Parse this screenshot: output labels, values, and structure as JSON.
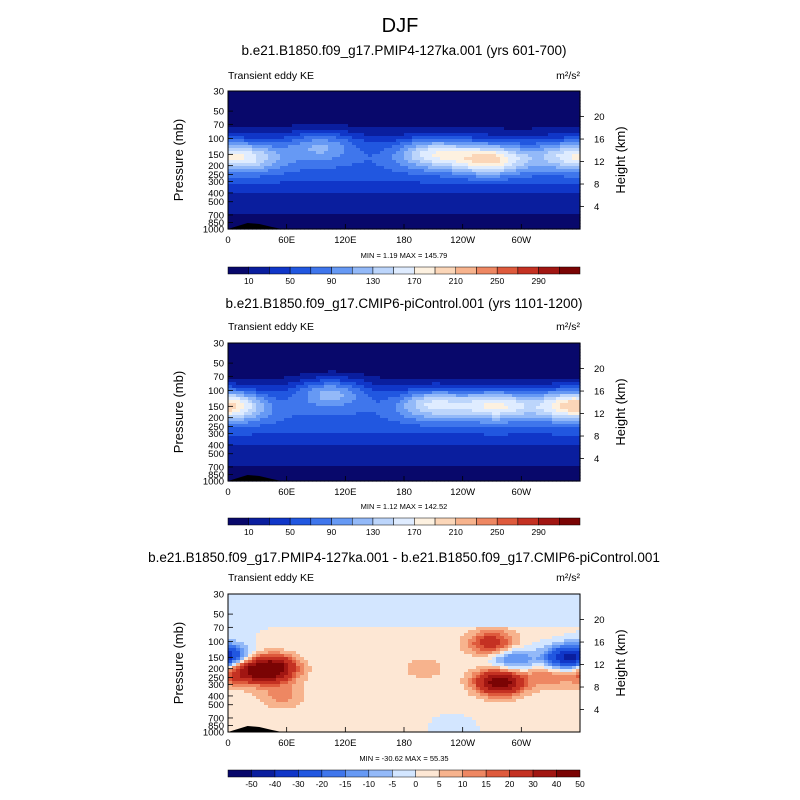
{
  "figure_title": "DJF",
  "colors": {
    "seq": [
      "#08086b",
      "#0a1e9e",
      "#1036c8",
      "#2157e0",
      "#3f76ec",
      "#6699f4",
      "#93b9f8",
      "#bcd5fb",
      "#dfecff",
      "#fdf1e0",
      "#fbd6b8",
      "#f7b38d",
      "#ee8762",
      "#de5a3c",
      "#c43122",
      "#a11612",
      "#7a0404"
    ],
    "div": [
      "#08086b",
      "#0a1e9e",
      "#1036c8",
      "#2157e0",
      "#3f76ec",
      "#6699f4",
      "#93b9f8",
      "#d3e6ff",
      "#fde7d4",
      "#f7b38d",
      "#ee8762",
      "#de5a3c",
      "#c43122",
      "#a11612",
      "#7a0404"
    ],
    "topo": "#000000"
  },
  "chart_data": [
    {
      "type": "heatmap",
      "title": "b.e21.B1850.f09_g17.PMIP4-127ka.001 (yrs 601-700)",
      "left_label": "Transient eddy KE",
      "right_label_units": "m²/s²",
      "ylabel": "Pressure (mb)",
      "ylabel_right": "Height (km)",
      "x_ticks": [
        "0",
        "60E",
        "120E",
        "180",
        "120W",
        "60W"
      ],
      "x_tick_values": [
        0,
        60,
        120,
        180,
        240,
        300
      ],
      "xlim": [
        0,
        360
      ],
      "y_ticks": [
        "30",
        "50",
        "70",
        "100",
        "150",
        "200",
        "250",
        "300",
        "400",
        "500",
        "700",
        "850",
        "1000"
      ],
      "y_tick_values": [
        30,
        50,
        70,
        100,
        150,
        200,
        250,
        300,
        400,
        500,
        700,
        850,
        1000
      ],
      "ylim": [
        1000,
        30
      ],
      "yscale": "log",
      "height_ticks": [
        "4",
        "8",
        "12",
        "16",
        "20"
      ],
      "height_tick_values": [
        4,
        8,
        12,
        16,
        20
      ],
      "stats": "MIN =   1.19  MAX = 145.79",
      "min": 1.19,
      "max": 145.79,
      "colorbar_labels": [
        "10",
        "50",
        "90",
        "130",
        "170",
        "210",
        "250",
        "290"
      ],
      "colorbar_levels": [
        10,
        30,
        50,
        70,
        90,
        110,
        130,
        150,
        170,
        190,
        210,
        230,
        250,
        270,
        290
      ],
      "jets": [
        {
          "lon": 20,
          "p": 160,
          "amp": 80
        },
        {
          "lon": 95,
          "p": 120,
          "amp": 70
        },
        {
          "lon": 210,
          "p": 145,
          "amp": 105
        },
        {
          "lon": 268,
          "p": 170,
          "amp": 135
        },
        {
          "lon": 345,
          "p": 150,
          "amp": 70
        }
      ]
    },
    {
      "type": "heatmap",
      "title": "b.e21.B1850.f09_g17.CMIP6-piControl.001 (yrs 1101-1200)",
      "left_label": "Transient eddy KE",
      "right_label_units": "m²/s²",
      "ylabel": "Pressure (mb)",
      "ylabel_right": "Height (km)",
      "x_ticks": [
        "0",
        "60E",
        "120E",
        "180",
        "120W",
        "60W"
      ],
      "x_tick_values": [
        0,
        60,
        120,
        180,
        240,
        300
      ],
      "xlim": [
        0,
        360
      ],
      "y_ticks": [
        "30",
        "50",
        "70",
        "100",
        "150",
        "200",
        "250",
        "300",
        "400",
        "500",
        "700",
        "850",
        "1000"
      ],
      "y_tick_values": [
        30,
        50,
        70,
        100,
        150,
        200,
        250,
        300,
        400,
        500,
        700,
        850,
        1000
      ],
      "ylim": [
        1000,
        30
      ],
      "yscale": "log",
      "height_ticks": [
        "4",
        "8",
        "12",
        "16",
        "20"
      ],
      "height_tick_values": [
        4,
        8,
        12,
        16,
        20
      ],
      "stats": "MIN =   1.12  MAX = 142.52",
      "min": 1.12,
      "max": 142.52,
      "colorbar_labels": [
        "10",
        "50",
        "90",
        "130",
        "170",
        "210",
        "250",
        "290"
      ],
      "colorbar_levels": [
        10,
        30,
        50,
        70,
        90,
        110,
        130,
        150,
        170,
        190,
        210,
        230,
        250,
        270,
        290
      ],
      "jets": [
        {
          "lon": 5,
          "p": 150,
          "amp": 85
        },
        {
          "lon": 105,
          "p": 105,
          "amp": 85
        },
        {
          "lon": 210,
          "p": 140,
          "amp": 100
        },
        {
          "lon": 275,
          "p": 145,
          "amp": 115
        },
        {
          "lon": 345,
          "p": 140,
          "amp": 80
        }
      ]
    },
    {
      "type": "heatmap",
      "title": "b.e21.B1850.f09_g17.PMIP4-127ka.001 - b.e21.B1850.f09_g17.CMIP6-piControl.001",
      "left_label": "Transient eddy KE",
      "right_label_units": "m²/s²",
      "ylabel": "Pressure (mb)",
      "ylabel_right": "Height (km)",
      "x_ticks": [
        "0",
        "60E",
        "120E",
        "180",
        "120W",
        "60W"
      ],
      "x_tick_values": [
        0,
        60,
        120,
        180,
        240,
        300
      ],
      "xlim": [
        0,
        360
      ],
      "y_ticks": [
        "30",
        "50",
        "70",
        "100",
        "150",
        "200",
        "250",
        "300",
        "400",
        "500",
        "700",
        "850",
        "1000"
      ],
      "y_tick_values": [
        30,
        50,
        70,
        100,
        150,
        200,
        250,
        300,
        400,
        500,
        700,
        850,
        1000
      ],
      "ylim": [
        1000,
        30
      ],
      "yscale": "log",
      "height_ticks": [
        "4",
        "8",
        "12",
        "16",
        "20"
      ],
      "height_tick_values": [
        4,
        8,
        12,
        16,
        20
      ],
      "stats": "MIN = -30.62  MAX =  55.35",
      "min": -30.62,
      "max": 55.35,
      "colorbar_labels": [
        "-50",
        "-40",
        "-30",
        "-20",
        "-15",
        "-10",
        "-5",
        "0",
        "5",
        "10",
        "15",
        "20",
        "30",
        "40",
        "50"
      ],
      "colorbar_levels": [
        -50,
        -40,
        -30,
        -20,
        -15,
        -10,
        -5,
        0,
        5,
        10,
        15,
        20,
        30,
        40,
        50
      ],
      "features": [
        {
          "lon": 45,
          "p": 200,
          "amp": 50
        },
        {
          "lon": 15,
          "p": 215,
          "amp": 30
        },
        {
          "lon": 55,
          "p": 400,
          "amp": 10
        },
        {
          "lon": 270,
          "p": 105,
          "amp": 25
        },
        {
          "lon": 278,
          "p": 280,
          "amp": 48
        },
        {
          "lon": 200,
          "p": 200,
          "amp": 6
        },
        {
          "lon": 330,
          "p": 230,
          "amp": 15
        },
        {
          "lon": 0,
          "p": 145,
          "amp": -25
        },
        {
          "lon": 290,
          "p": 160,
          "amp": -20
        },
        {
          "lon": 345,
          "p": 160,
          "amp": -30
        },
        {
          "lon": 20,
          "p": 60,
          "amp": -4
        },
        {
          "lon": 230,
          "p": 900,
          "amp": -5
        }
      ]
    }
  ]
}
